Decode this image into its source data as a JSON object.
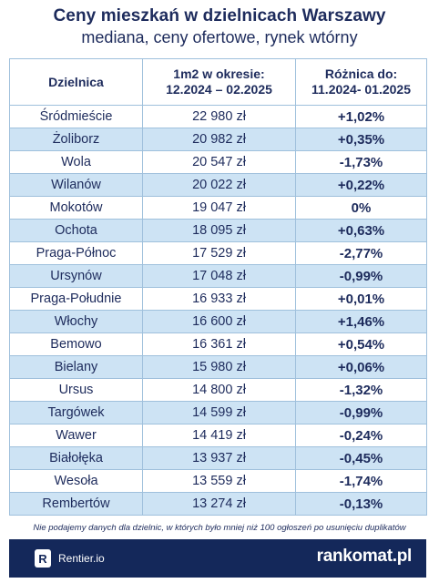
{
  "header": {
    "title": "Ceny mieszkań w dzielnicach Warszawy",
    "subtitle": "mediana, ceny ofertowe, rynek wtórny"
  },
  "table": {
    "columns": [
      "Dzielnica",
      "1m2 w okresie:",
      "12.2024 – 02.2025",
      "Różnica do:",
      "11.2024- 01.2025"
    ],
    "rows": [
      {
        "district": "Śródmieście",
        "price": "22 980 zł",
        "diff": "+1,02%"
      },
      {
        "district": "Żoliborz",
        "price": "20 982 zł",
        "diff": "+0,35%"
      },
      {
        "district": "Wola",
        "price": "20 547 zł",
        "diff": "-1,73%"
      },
      {
        "district": "Wilanów",
        "price": "20 022 zł",
        "diff": "+0,22%"
      },
      {
        "district": "Mokotów",
        "price": "19 047 zł",
        "diff": "0%"
      },
      {
        "district": "Ochota",
        "price": "18 095 zł",
        "diff": "+0,63%"
      },
      {
        "district": "Praga-Północ",
        "price": "17 529 zł",
        "diff": "-2,77%"
      },
      {
        "district": "Ursynów",
        "price": "17 048 zł",
        "diff": "-0,99%"
      },
      {
        "district": "Praga-Południe",
        "price": "16 933 zł",
        "diff": "+0,01%"
      },
      {
        "district": "Włochy",
        "price": "16 600 zł",
        "diff": "+1,46%"
      },
      {
        "district": "Bemowo",
        "price": "16 361 zł",
        "diff": "+0,54%"
      },
      {
        "district": "Bielany",
        "price": "15 980 zł",
        "diff": "+0,06%"
      },
      {
        "district": "Ursus",
        "price": "14 800 zł",
        "diff": "-1,32%"
      },
      {
        "district": "Targówek",
        "price": "14 599 zł",
        "diff": "-0,99%"
      },
      {
        "district": "Wawer",
        "price": "14 419 zł",
        "diff": "-0,24%"
      },
      {
        "district": "Białołęka",
        "price": "13 937 zł",
        "diff": "-0,45%"
      },
      {
        "district": "Wesoła",
        "price": "13 559 zł",
        "diff": "-1,74%"
      },
      {
        "district": "Rembertów",
        "price": "13 274 zł",
        "diff": "-0,13%"
      }
    ]
  },
  "note": "Nie podajemy danych dla dzielnic, w których było mniej niż 100 ogłoszeń po usunięciu duplikatów",
  "footer": {
    "rentier_logo_letter": "R",
    "rentier_label": "Rentier.io",
    "rankomat_label": "rankomat.pl"
  },
  "colors": {
    "navy": "#14285a",
    "row_alt": "#cde3f4",
    "border": "#9fc0dc"
  }
}
